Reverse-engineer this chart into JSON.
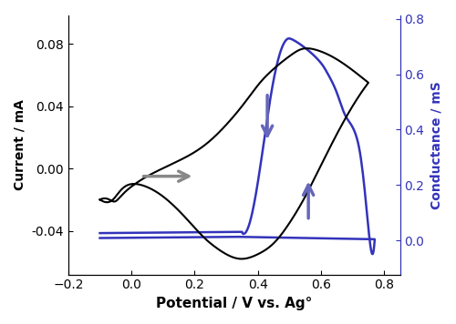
{
  "xlim": [
    -0.2,
    0.85
  ],
  "ylim_left": [
    -0.068,
    0.098
  ],
  "ylim_right": [
    -0.068,
    0.098
  ],
  "xlabel": "Potential / V vs. Ag°",
  "ylabel_left": "Current / mA",
  "ylabel_right": "Conductance / mS",
  "left_yticks": [
    -0.04,
    0.0,
    0.04,
    0.08
  ],
  "right_yticks_vals": [
    0.0,
    0.2,
    0.4,
    0.6,
    0.8
  ],
  "right_yticks_mA": [
    -0.0462,
    -0.0107,
    0.0249,
    0.0604,
    0.096
  ],
  "xticks": [
    -0.2,
    0.0,
    0.2,
    0.4,
    0.6,
    0.8
  ],
  "black_line_color": "#000000",
  "blue_line_color": "#3333bb",
  "arrow_gray_color": "#888888",
  "arrow_blue_color": "#6666bb",
  "background": "#ffffff",
  "figsize": [
    5.0,
    3.56
  ],
  "dpi": 100,
  "cond_scale_min": -0.0462,
  "cond_scale_max": 0.096,
  "cond_range": 0.9
}
